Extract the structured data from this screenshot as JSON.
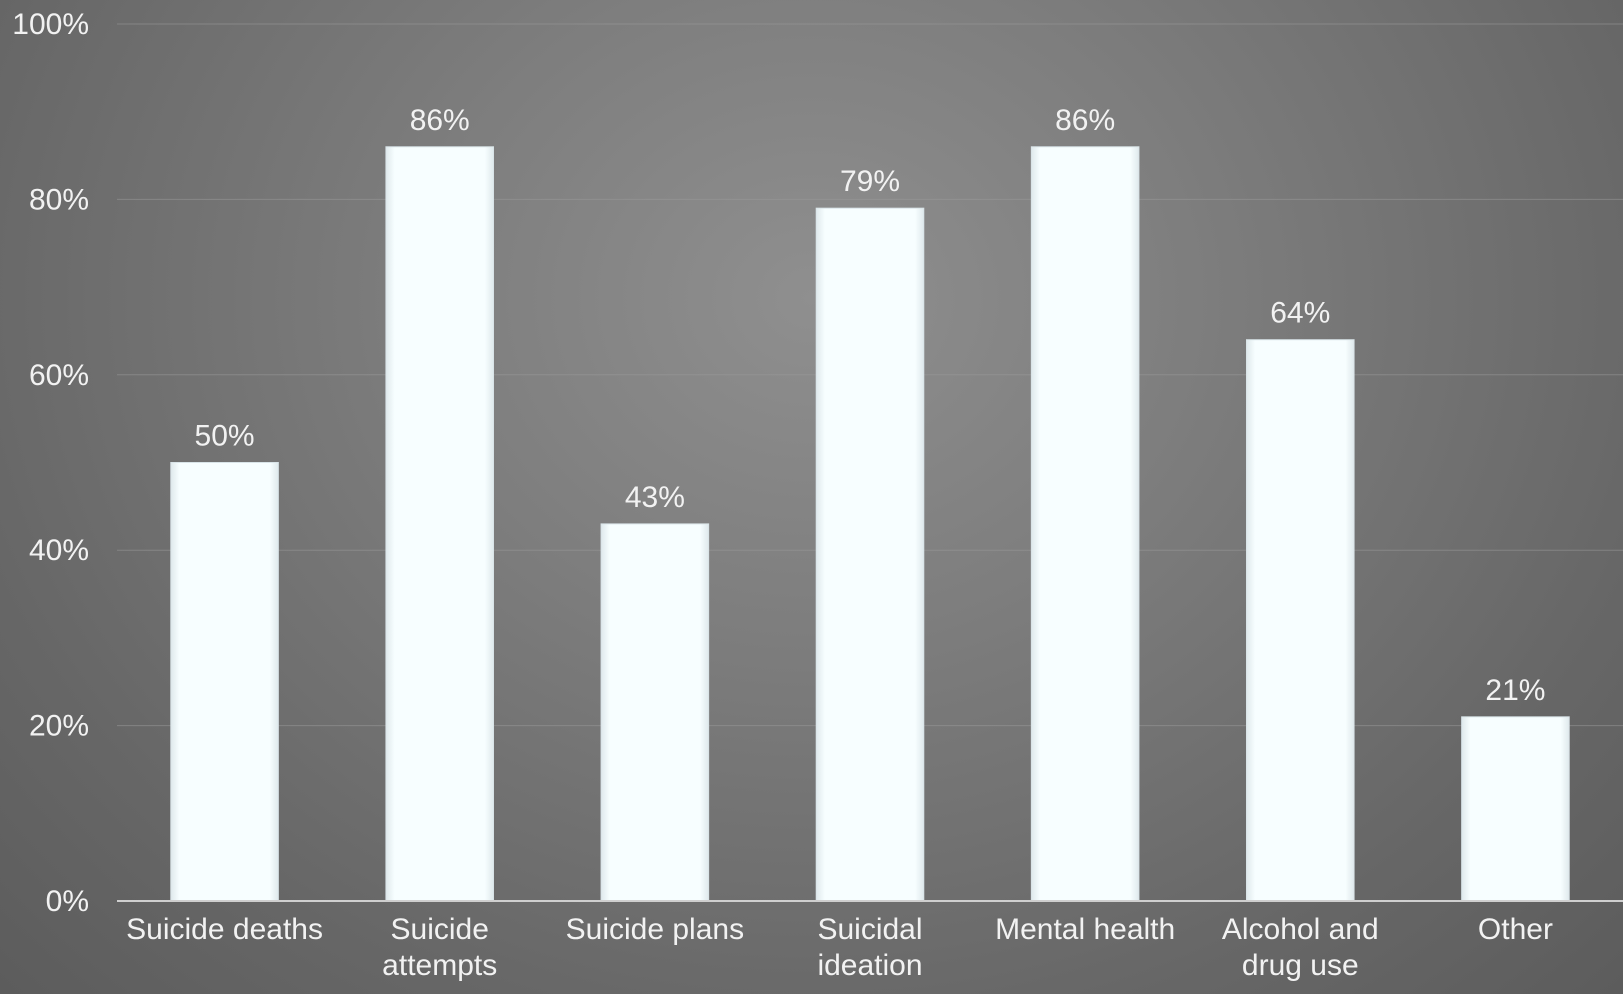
{
  "chart_data": {
    "type": "bar",
    "title": "",
    "xlabel": "",
    "ylabel": "",
    "categories": [
      [
        "Suicide deaths"
      ],
      [
        "Suicide",
        "attempts"
      ],
      [
        "Suicide plans"
      ],
      [
        "Suicidal",
        "ideation"
      ],
      [
        "Mental health"
      ],
      [
        "Alcohol and",
        "drug use"
      ],
      [
        "Other"
      ]
    ],
    "values": [
      50,
      86,
      43,
      79,
      86,
      64,
      21
    ],
    "data_labels": [
      "50%",
      "86%",
      "43%",
      "79%",
      "86%",
      "64%",
      "21%"
    ],
    "ylim": [
      0,
      100
    ],
    "yticks": [
      0,
      20,
      40,
      60,
      80,
      100
    ],
    "ytick_labels": [
      "0%",
      "20%",
      "40%",
      "60%",
      "80%",
      "100%"
    ],
    "grid": true,
    "legend": "none",
    "colors": {
      "bar": "#f7feff",
      "bar_edge": "#d9e4e8",
      "text": "#f2f2f2",
      "background": "#7d7d7d"
    }
  }
}
